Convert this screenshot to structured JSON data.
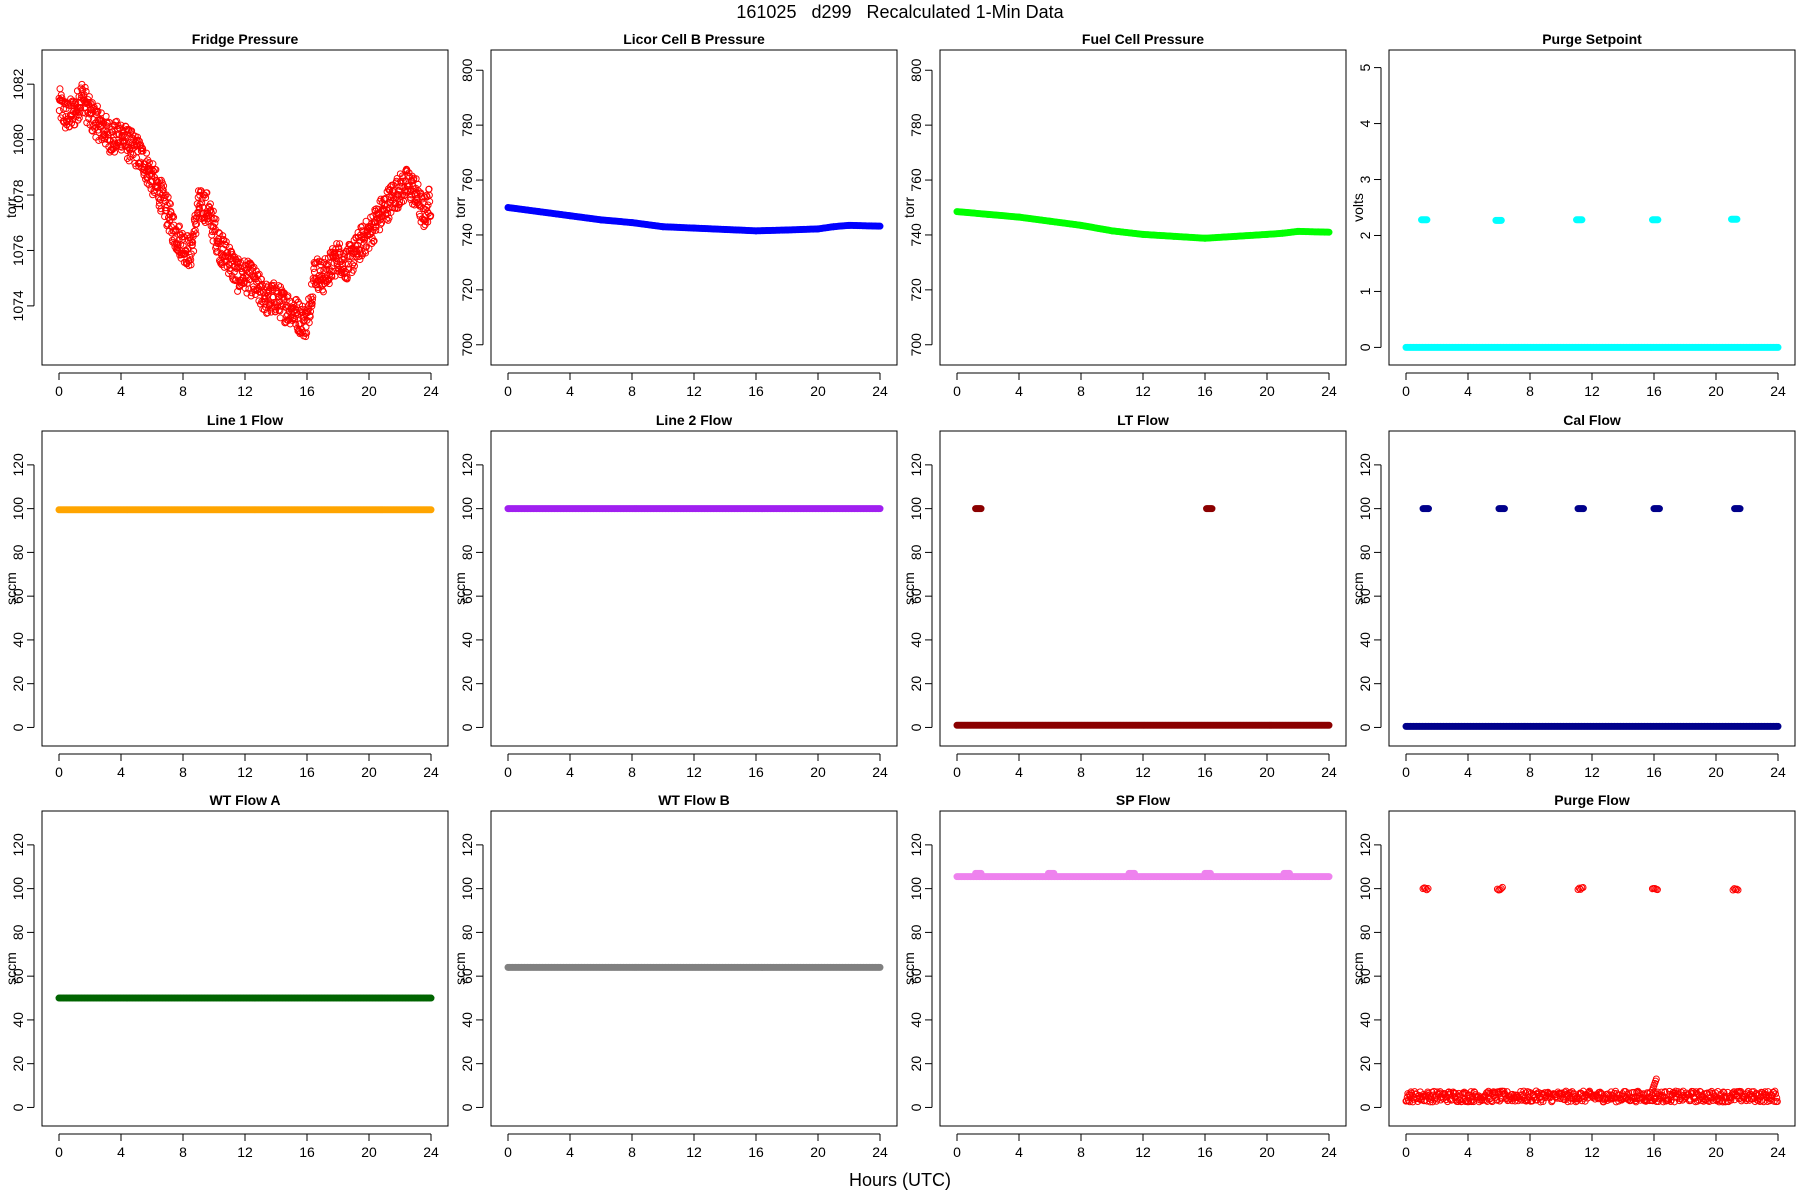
{
  "header": {
    "title": "161025   d299   Recalculated 1-Min Data"
  },
  "footer": {
    "xlabel": "Hours (UTC)"
  },
  "chart_data": [
    {
      "type": "scatter",
      "title": "Fridge Pressure",
      "ylabel": "torr",
      "color": "#ff0000",
      "marker": "open-circle",
      "xlim": [
        0,
        24
      ],
      "ylim": [
        1072.3,
        1082.8
      ],
      "xticks": [
        0,
        4,
        8,
        12,
        16,
        20,
        24
      ],
      "yticks": [
        1074,
        1076,
        1078,
        1080,
        1082
      ],
      "x": [
        0,
        0.5,
        1,
        1.5,
        2,
        2.5,
        3,
        3.5,
        4,
        4.5,
        5,
        5.5,
        6,
        6.5,
        7,
        7.5,
        8,
        8.5,
        9,
        9.5,
        10,
        10.5,
        11,
        11.5,
        12,
        12.5,
        13,
        13.5,
        14,
        14.5,
        15,
        15.5,
        16,
        16.5,
        17,
        17.5,
        18,
        18.5,
        19,
        19.5,
        20,
        20.5,
        21,
        21.5,
        22,
        22.5,
        23,
        23.5,
        24
      ],
      "y": [
        1081.3,
        1080.8,
        1081,
        1081.6,
        1080.9,
        1080.6,
        1080.3,
        1080,
        1080.2,
        1079.8,
        1079.6,
        1079.2,
        1078.6,
        1078.1,
        1077.4,
        1076.6,
        1076.2,
        1075.9,
        1077.6,
        1077.6,
        1076.8,
        1076,
        1075.7,
        1075.1,
        1075.1,
        1074.9,
        1074.5,
        1074.2,
        1074.3,
        1074,
        1073.9,
        1073.6,
        1073.4,
        1075.3,
        1075,
        1075.4,
        1075.8,
        1075.5,
        1075.8,
        1076.3,
        1076.6,
        1077.1,
        1077.5,
        1077.9,
        1078.2,
        1078.4,
        1078.1,
        1077.3,
        1077.8
      ]
    },
    {
      "type": "scatter",
      "title": "Licor Cell B Pressure",
      "ylabel": "torr",
      "color": "#0000ff",
      "marker": "filled",
      "xlim": [
        0,
        24
      ],
      "ylim": [
        697,
        803
      ],
      "xticks": [
        0,
        4,
        8,
        12,
        16,
        20,
        24
      ],
      "yticks": [
        700,
        720,
        740,
        760,
        780,
        800
      ],
      "x": [
        0,
        2,
        4,
        6,
        8,
        10,
        12,
        14,
        16,
        18,
        20,
        21,
        22,
        24
      ],
      "y": [
        750,
        748.5,
        747,
        745.5,
        744.5,
        743,
        742.5,
        742,
        741.5,
        741.8,
        742.2,
        743,
        743.5,
        743.2
      ]
    },
    {
      "type": "scatter",
      "title": "Fuel Cell Pressure",
      "ylabel": "torr",
      "color": "#00ff00",
      "marker": "filled",
      "xlim": [
        0,
        24
      ],
      "ylim": [
        697,
        803
      ],
      "xticks": [
        0,
        4,
        8,
        12,
        16,
        20,
        24
      ],
      "yticks": [
        700,
        720,
        740,
        760,
        780,
        800
      ],
      "x": [
        0,
        2,
        4,
        6,
        8,
        10,
        12,
        14,
        16,
        18,
        20,
        21,
        22,
        24
      ],
      "y": [
        748.5,
        747.5,
        746.5,
        745,
        743.5,
        741.5,
        740.2,
        739.5,
        738.8,
        739.5,
        740.2,
        740.6,
        741.3,
        741
      ]
    },
    {
      "type": "scatter",
      "title": "Purge Setpoint",
      "ylabel": "volts",
      "color": "#00ffff",
      "marker": "filled",
      "xlim": [
        0,
        24
      ],
      "ylim": [
        -0.1,
        5.1
      ],
      "xticks": [
        0,
        4,
        8,
        12,
        16,
        20,
        24
      ],
      "yticks": [
        0,
        1,
        2,
        3,
        4,
        5
      ],
      "x": [
        0,
        24,
        1,
        5.8,
        11,
        15.9,
        21
      ],
      "y": [
        0,
        0,
        2.28,
        2.27,
        2.28,
        2.28,
        2.29
      ],
      "note_series": [
        "baseline segment 0→24 at 0",
        "calibration points"
      ]
    },
    {
      "type": "scatter",
      "title": "Line 1 Flow",
      "ylabel": "sccm",
      "color": "#ffa500",
      "marker": "filled",
      "xlim": [
        0,
        24
      ],
      "ylim": [
        -3,
        130
      ],
      "xticks": [
        0,
        4,
        8,
        12,
        16,
        20,
        24
      ],
      "yticks": [
        0,
        20,
        40,
        60,
        80,
        100,
        120
      ],
      "x": [
        0,
        24
      ],
      "y": [
        99.5,
        99.5
      ]
    },
    {
      "type": "scatter",
      "title": "Line 2 Flow",
      "ylabel": "sccm",
      "color": "#a020f0",
      "marker": "filled",
      "xlim": [
        0,
        24
      ],
      "ylim": [
        -3,
        130
      ],
      "xticks": [
        0,
        4,
        8,
        12,
        16,
        20,
        24
      ],
      "yticks": [
        0,
        20,
        40,
        60,
        80,
        100,
        120
      ],
      "x": [
        0,
        24
      ],
      "y": [
        100,
        100
      ]
    },
    {
      "type": "scatter",
      "title": "LT Flow",
      "ylabel": "sccm",
      "color": "#8b0000",
      "marker": "filled",
      "xlim": [
        0,
        24
      ],
      "ylim": [
        -3,
        130
      ],
      "xticks": [
        0,
        4,
        8,
        12,
        16,
        20,
        24
      ],
      "yticks": [
        0,
        20,
        40,
        60,
        80,
        100,
        120
      ],
      "x": [
        0,
        24,
        1.2,
        16.1
      ],
      "y": [
        1,
        1,
        100,
        100
      ]
    },
    {
      "type": "scatter",
      "title": "Cal Flow",
      "ylabel": "sccm",
      "color": "#00008b",
      "marker": "filled",
      "xlim": [
        0,
        24
      ],
      "ylim": [
        -3,
        130
      ],
      "xticks": [
        0,
        4,
        8,
        12,
        16,
        20,
        24
      ],
      "yticks": [
        0,
        20,
        40,
        60,
        80,
        100,
        120
      ],
      "x": [
        0,
        24,
        1.1,
        6,
        11.1,
        16,
        21.2
      ],
      "y": [
        0.5,
        0.5,
        100,
        100,
        100,
        100,
        100
      ]
    },
    {
      "type": "scatter",
      "title": "WT Flow A",
      "ylabel": "sccm",
      "color": "#006400",
      "marker": "filled",
      "xlim": [
        0,
        24
      ],
      "ylim": [
        -3,
        130
      ],
      "xticks": [
        0,
        4,
        8,
        12,
        16,
        20,
        24
      ],
      "yticks": [
        0,
        20,
        40,
        60,
        80,
        100,
        120
      ],
      "x": [
        0,
        24
      ],
      "y": [
        50,
        50
      ]
    },
    {
      "type": "scatter",
      "title": "WT Flow B",
      "ylabel": "sccm",
      "color": "#808080",
      "marker": "filled",
      "xlim": [
        0,
        24
      ],
      "ylim": [
        -3,
        130
      ],
      "xticks": [
        0,
        4,
        8,
        12,
        16,
        20,
        24
      ],
      "yticks": [
        0,
        20,
        40,
        60,
        80,
        100,
        120
      ],
      "x": [
        0,
        24
      ],
      "y": [
        64,
        64
      ]
    },
    {
      "type": "scatter",
      "title": "SP Flow",
      "ylabel": "sccm",
      "color": "#ee82ee",
      "marker": "filled",
      "xlim": [
        0,
        24
      ],
      "ylim": [
        -3,
        130
      ],
      "xticks": [
        0,
        4,
        8,
        12,
        16,
        20,
        24
      ],
      "yticks": [
        0,
        20,
        40,
        60,
        80,
        100,
        120
      ],
      "x": [
        0,
        24,
        1.2,
        5.9,
        11.1,
        16,
        21.1
      ],
      "y": [
        105.5,
        105.5,
        107,
        107,
        107,
        107,
        107
      ]
    },
    {
      "type": "scatter",
      "title": "Purge Flow",
      "ylabel": "sccm",
      "color": "#ff0000",
      "marker": "open-circle",
      "xlim": [
        0,
        24
      ],
      "ylim": [
        -3,
        130
      ],
      "xticks": [
        0,
        4,
        8,
        12,
        16,
        20,
        24
      ],
      "yticks": [
        0,
        20,
        40,
        60,
        80,
        100,
        120
      ],
      "x": [
        0,
        24,
        1.1,
        5.9,
        11.1,
        15.9,
        21.1
      ],
      "y": [
        5,
        5,
        100,
        100,
        100,
        100,
        100
      ]
    }
  ]
}
